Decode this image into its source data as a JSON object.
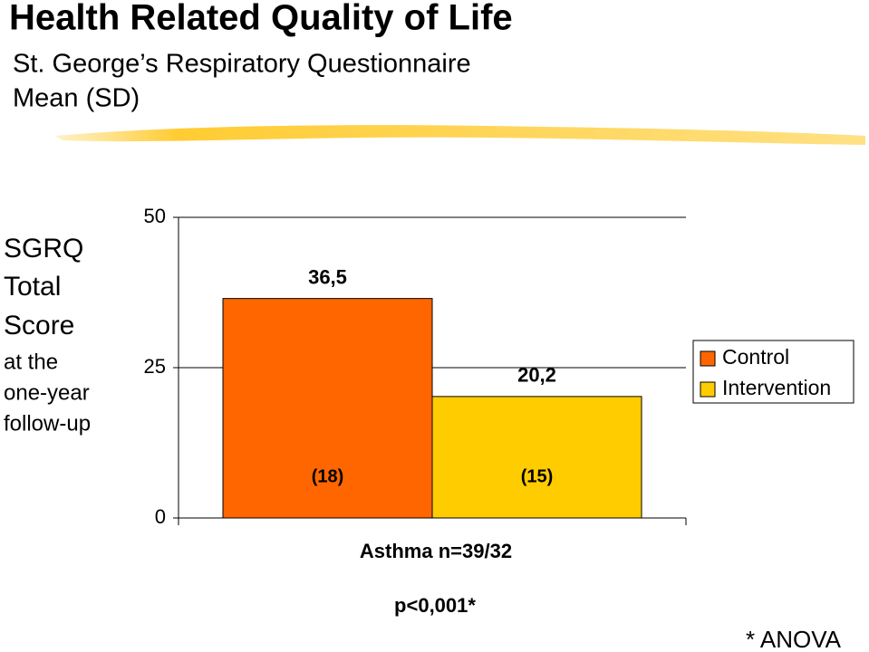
{
  "chart_data": {
    "type": "bar",
    "title": "Health Related Quality of Life",
    "subtitle": [
      "St. George’s Respiratory Questionnaire",
      "Mean (SD)"
    ],
    "y_label": [
      "SGRQ",
      "Total",
      "Score",
      "at the",
      "one-year",
      "follow-up"
    ],
    "categories": [
      "Asthma n=39/32"
    ],
    "series": [
      {
        "name": "Control",
        "color": "#ff6600",
        "values": [
          36.5
        ],
        "value_labels": [
          "36,5"
        ],
        "sd_labels": [
          "(18)"
        ]
      },
      {
        "name": "Intervention",
        "color": "#ffcc00",
        "values": [
          20.2
        ],
        "value_labels": [
          "20,2"
        ],
        "sd_labels": [
          "(15)"
        ]
      }
    ],
    "ylim": [
      0,
      50
    ],
    "yticks": [
      0,
      25,
      50
    ],
    "grid": true,
    "legend": "right",
    "annotations": [
      "p<0,001*",
      "* ANOVA"
    ]
  }
}
